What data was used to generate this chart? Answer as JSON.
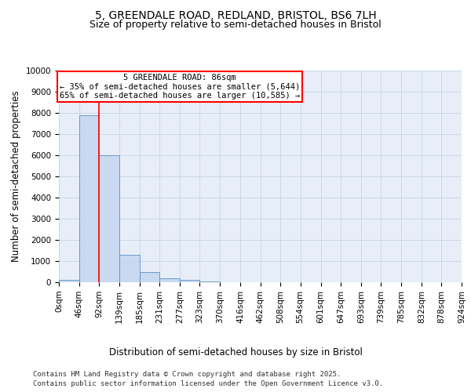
{
  "title_line1": "5, GREENDALE ROAD, REDLAND, BRISTOL, BS6 7LH",
  "title_line2": "Size of property relative to semi-detached houses in Bristol",
  "xlabel": "Distribution of semi-detached houses by size in Bristol",
  "ylabel": "Number of semi-detached properties",
  "annotation_text_line1": "5 GREENDALE ROAD: 86sqm",
  "annotation_text_line2": "← 35% of semi-detached houses are smaller (5,644)",
  "annotation_text_line3": "65% of semi-detached houses are larger (10,585) →",
  "bins": [
    0,
    46,
    92,
    139,
    185,
    231,
    277,
    323,
    370,
    416,
    462,
    508,
    554,
    601,
    647,
    693,
    739,
    785,
    832,
    878,
    924
  ],
  "bin_labels": [
    "0sqm",
    "46sqm",
    "92sqm",
    "139sqm",
    "185sqm",
    "231sqm",
    "277sqm",
    "323sqm",
    "370sqm",
    "416sqm",
    "462sqm",
    "508sqm",
    "554sqm",
    "601sqm",
    "647sqm",
    "693sqm",
    "739sqm",
    "785sqm",
    "832sqm",
    "878sqm",
    "924sqm"
  ],
  "counts": [
    100,
    7900,
    6000,
    1300,
    500,
    200,
    100,
    50,
    0,
    0,
    0,
    0,
    0,
    0,
    0,
    0,
    0,
    0,
    0,
    0
  ],
  "bar_color": "#c8d9f0",
  "bar_edge_color": "#5b8fc6",
  "vline_color": "red",
  "vline_x": 92,
  "box_edge_color": "red",
  "plot_bg_color": "#e8eef8",
  "ylim": [
    0,
    10000
  ],
  "yticks": [
    0,
    1000,
    2000,
    3000,
    4000,
    5000,
    6000,
    7000,
    8000,
    9000,
    10000
  ],
  "grid_color": "#c8d4e8",
  "footer_line1": "Contains HM Land Registry data © Crown copyright and database right 2025.",
  "footer_line2": "Contains public sector information licensed under the Open Government Licence v3.0.",
  "title_fontsize": 10,
  "subtitle_fontsize": 9,
  "axis_label_fontsize": 8.5,
  "tick_fontsize": 7.5,
  "annotation_fontsize": 7.5,
  "footer_fontsize": 6.5
}
